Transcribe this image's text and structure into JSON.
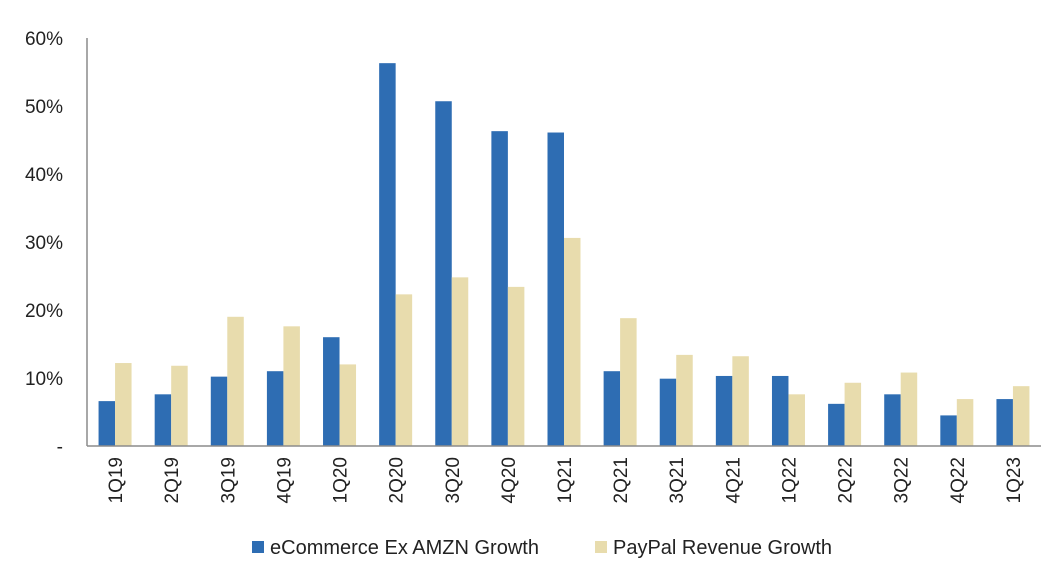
{
  "chart_data": {
    "type": "bar",
    "categories": [
      "1Q19",
      "2Q19",
      "3Q19",
      "4Q19",
      "1Q20",
      "2Q20",
      "3Q20",
      "4Q20",
      "1Q21",
      "2Q21",
      "3Q21",
      "4Q21",
      "1Q22",
      "2Q22",
      "3Q22",
      "4Q22",
      "1Q23"
    ],
    "series": [
      {
        "name": "eCommerce Ex AMZN Growth",
        "color": "#2e6db3",
        "values": [
          6.6,
          7.6,
          10.2,
          11.0,
          16.0,
          56.3,
          50.7,
          46.3,
          46.1,
          11.0,
          9.9,
          10.3,
          10.3,
          6.2,
          7.6,
          4.5,
          6.9
        ]
      },
      {
        "name": "PayPal Revenue Growth",
        "color": "#e8dcad",
        "values": [
          12.2,
          11.8,
          19.0,
          17.6,
          12.0,
          22.3,
          24.8,
          23.4,
          30.6,
          18.8,
          13.4,
          13.2,
          7.6,
          9.3,
          10.8,
          6.9,
          8.8
        ]
      }
    ],
    "yticks": [
      {
        "value": 0,
        "label": "-"
      },
      {
        "value": 10,
        "label": "10%"
      },
      {
        "value": 20,
        "label": "20%"
      },
      {
        "value": 30,
        "label": "30%"
      },
      {
        "value": 40,
        "label": "40%"
      },
      {
        "value": 50,
        "label": "50%"
      },
      {
        "value": 60,
        "label": "60%"
      }
    ],
    "ylim": [
      0,
      60
    ],
    "title": "",
    "xlabel": "",
    "ylabel": "",
    "grid": false,
    "legend_position": "bottom"
  }
}
